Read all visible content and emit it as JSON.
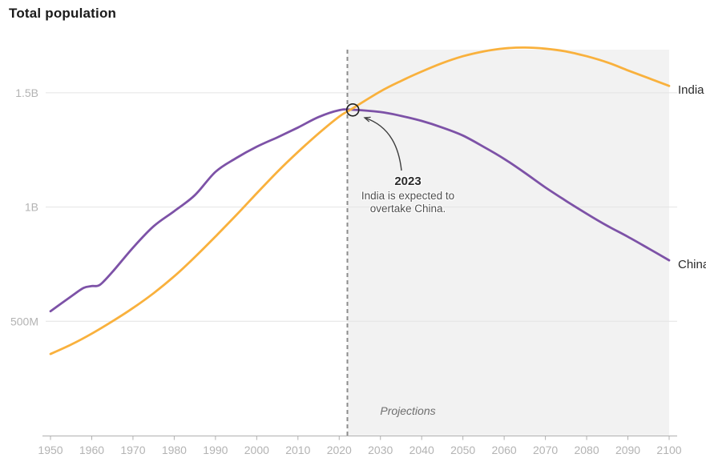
{
  "chart_data": {
    "type": "line",
    "title": "Total population",
    "xlabel": "",
    "ylabel": "",
    "xlim": [
      1950,
      2100
    ],
    "ylim_millions": [
      0,
      1700
    ],
    "grid": "horizontal",
    "legend_position": "line-end-labels-right",
    "x_ticks": [
      1950,
      1960,
      1970,
      1980,
      1990,
      2000,
      2010,
      2020,
      2030,
      2040,
      2050,
      2060,
      2070,
      2080,
      2090,
      2100
    ],
    "y_ticks": [
      {
        "label": "500M",
        "value_millions": 500
      },
      {
        "label": "1B",
        "value_millions": 1000
      },
      {
        "label": "1.5B",
        "value_millions": 1500
      }
    ],
    "series": [
      {
        "name": "India",
        "color": "#F9B13D",
        "points_year_millions": [
          [
            1950,
            357
          ],
          [
            1955,
            398
          ],
          [
            1960,
            446
          ],
          [
            1965,
            500
          ],
          [
            1970,
            558
          ],
          [
            1975,
            623
          ],
          [
            1980,
            697
          ],
          [
            1985,
            781
          ],
          [
            1990,
            871
          ],
          [
            1995,
            964
          ],
          [
            2000,
            1060
          ],
          [
            2005,
            1154
          ],
          [
            2010,
            1241
          ],
          [
            2015,
            1322
          ],
          [
            2020,
            1396
          ],
          [
            2023,
            1429
          ],
          [
            2030,
            1506
          ],
          [
            2035,
            1552
          ],
          [
            2040,
            1593
          ],
          [
            2045,
            1630
          ],
          [
            2050,
            1660
          ],
          [
            2055,
            1681
          ],
          [
            2060,
            1694
          ],
          [
            2065,
            1698
          ],
          [
            2070,
            1693
          ],
          [
            2075,
            1681
          ],
          [
            2080,
            1660
          ],
          [
            2085,
            1633
          ],
          [
            2090,
            1598
          ],
          [
            2095,
            1564
          ],
          [
            2100,
            1530
          ]
        ]
      },
      {
        "name": "China",
        "color": "#7D52A7",
        "points_year_millions": [
          [
            1950,
            544
          ],
          [
            1955,
            609
          ],
          [
            1958,
            646
          ],
          [
            1960,
            654
          ],
          [
            1962,
            660
          ],
          [
            1965,
            716
          ],
          [
            1970,
            822
          ],
          [
            1975,
            916
          ],
          [
            1980,
            982
          ],
          [
            1985,
            1052
          ],
          [
            1990,
            1154
          ],
          [
            1995,
            1214
          ],
          [
            2000,
            1264
          ],
          [
            2005,
            1305
          ],
          [
            2010,
            1348
          ],
          [
            2015,
            1394
          ],
          [
            2020,
            1424
          ],
          [
            2023,
            1426
          ],
          [
            2030,
            1416
          ],
          [
            2035,
            1399
          ],
          [
            2040,
            1377
          ],
          [
            2045,
            1348
          ],
          [
            2050,
            1313
          ],
          [
            2055,
            1264
          ],
          [
            2060,
            1211
          ],
          [
            2065,
            1150
          ],
          [
            2070,
            1086
          ],
          [
            2075,
            1027
          ],
          [
            2080,
            971
          ],
          [
            2085,
            918
          ],
          [
            2090,
            870
          ],
          [
            2095,
            819
          ],
          [
            2100,
            767
          ]
        ]
      }
    ],
    "annotation": {
      "year_label": "2023",
      "lines": [
        "India is expected to",
        "overtake China."
      ],
      "marker_year": 2023,
      "marker_value_millions": 1425
    },
    "projection": {
      "label": "Projections",
      "start_year": 2023
    },
    "colors": {
      "projection_fill": "#F2F2F2",
      "grid": "#E4E4E4",
      "axis": "#B0B0B0",
      "tick_label": "#B3B3B3",
      "dashed_line": "#8C8C8C",
      "title": "#1A1A1A",
      "series_label": "#2B2B2B",
      "marker_stroke": "#1F1F1F",
      "arrow": "#3D3D3D"
    }
  }
}
